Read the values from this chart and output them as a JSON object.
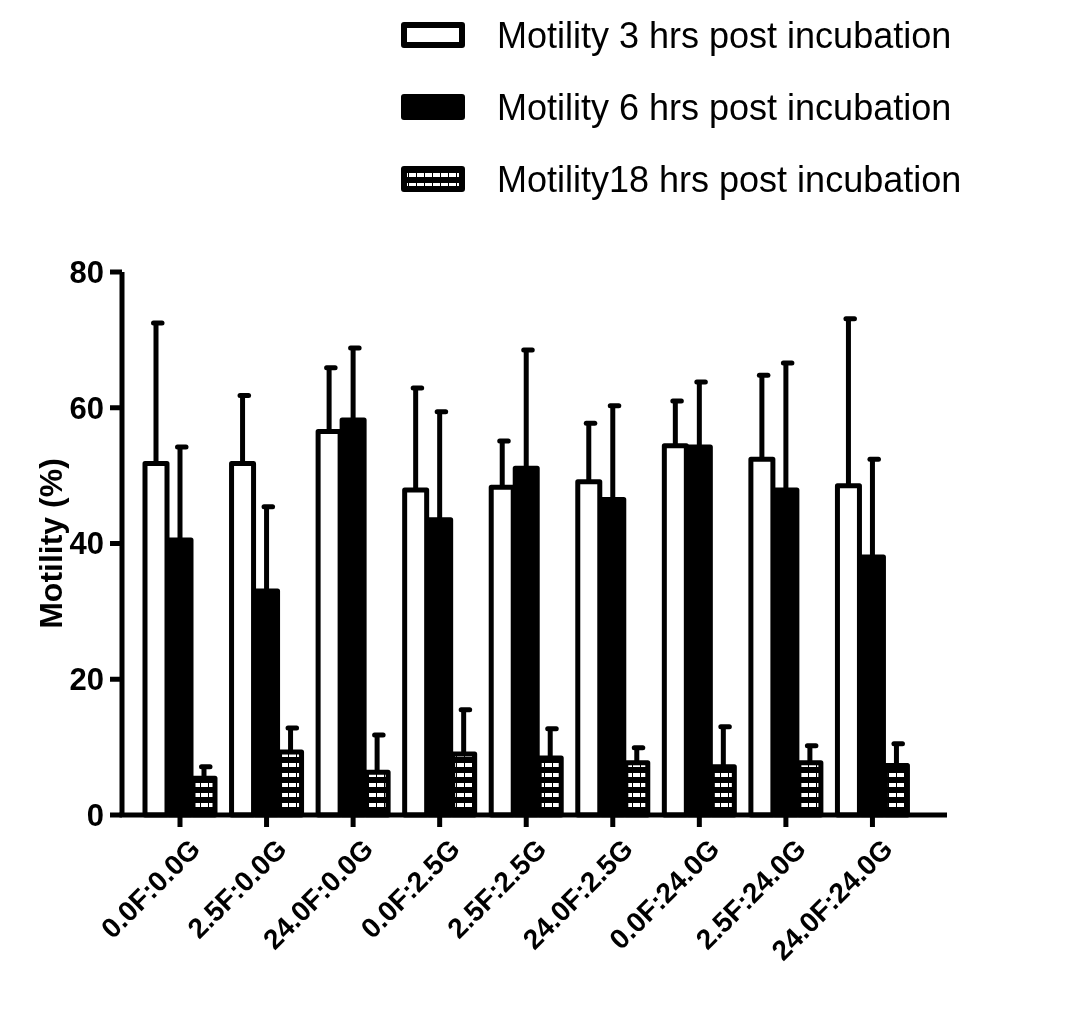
{
  "chart_data": {
    "type": "bar",
    "ylabel": "Motility (%)",
    "categories": [
      "0.0F:0.0G",
      "2.5F:0.0G",
      "24.0F:0.0G",
      "0.0F:2.5G",
      "2.5F:2.5G",
      "24.0F:2.5G",
      "0.0F:24.0G",
      "2.5F:24.0G",
      "24.0F:24.0G"
    ],
    "series": [
      {
        "name": "Motility 3 hrs post incubation",
        "color": "#ffffff",
        "values": [
          51.8,
          51.8,
          56.5,
          47.9,
          48.3,
          49.1,
          54.4,
          52.4,
          48.5
        ],
        "errors": [
          [
            51.8,
            72.5
          ],
          [
            51.8,
            61.8
          ],
          [
            56.5,
            65.9
          ],
          [
            47.9,
            62.9
          ],
          [
            48.3,
            55.1
          ],
          [
            49.1,
            57.7
          ],
          [
            54.4,
            61.0
          ],
          [
            52.4,
            64.8
          ],
          [
            48.5,
            73.1
          ]
        ]
      },
      {
        "name": "Motility 6 hrs post incubation",
        "color": "#000000",
        "values": [
          40.5,
          33.0,
          58.2,
          43.5,
          51.1,
          46.5,
          54.2,
          47.9,
          38.0
        ],
        "errors": [
          [
            40.5,
            54.2
          ],
          [
            33.0,
            45.4
          ],
          [
            58.2,
            68.8
          ],
          [
            43.5,
            59.4
          ],
          [
            51.1,
            68.5
          ],
          [
            46.5,
            60.3
          ],
          [
            54.2,
            63.8
          ],
          [
            47.9,
            66.6
          ],
          [
            38.0,
            52.4
          ]
        ]
      },
      {
        "name": "Motility18 hrs post incubation",
        "color": "#000000",
        "values": [
          5.4,
          9.3,
          6.3,
          9.0,
          8.4,
          7.7,
          7.1,
          7.7,
          7.3
        ],
        "errors": [
          [
            5.4,
            7.1
          ],
          [
            9.3,
            12.8
          ],
          [
            6.3,
            11.8
          ],
          [
            9.0,
            15.5
          ],
          [
            8.4,
            12.7
          ],
          [
            7.7,
            9.9
          ],
          [
            7.1,
            13.0
          ],
          [
            7.7,
            10.2
          ],
          [
            7.3,
            10.5
          ]
        ]
      }
    ],
    "ylim": [
      0,
      80
    ],
    "yticks": [
      0,
      20,
      40,
      60,
      80
    ],
    "grid": false,
    "legend": "top right"
  }
}
